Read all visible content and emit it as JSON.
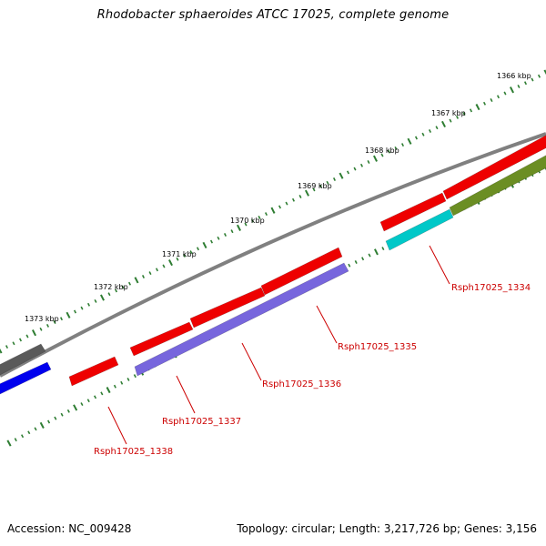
{
  "title": "Rhodobacter sphaeroides ATCC 17025, complete genome",
  "footer": {
    "accession": "Accession: NC_009428",
    "summary": "Topology: circular; Length: 3,217,726 bp; Genes: 3,156"
  },
  "scale": {
    "unit": "kbp",
    "labels": [
      "1366 kbp",
      "1367 kbp",
      "1368 kbp",
      "1369 kbp",
      "1370 kbp",
      "1371 kbp",
      "1372 kbp",
      "1373 kbp"
    ]
  },
  "colors": {
    "backbone": "#808080",
    "tick": "#2e7d32",
    "label": "#cc0000",
    "gene_red": "#ee0000",
    "gene_gray": "#5a5a5a",
    "gene_blue": "#0000ee",
    "gene_olive": "#6b8e23",
    "gene_cyan": "#00c8c8",
    "gene_purple": "#7766dd"
  },
  "gene_labels": [
    "Rsph17025_1334",
    "Rsph17025_1335",
    "Rsph17025_1336",
    "Rsph17025_1337",
    "Rsph17025_1338"
  ]
}
